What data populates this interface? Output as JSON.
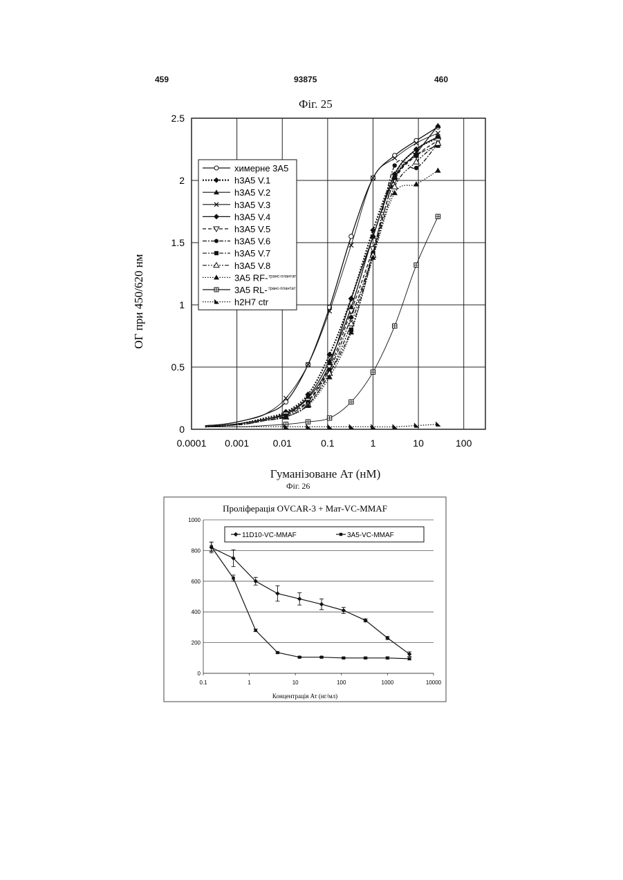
{
  "page": {
    "left_number": "459",
    "center_number": "93875",
    "right_number": "460"
  },
  "chart_data": [
    {
      "type": "line",
      "title": "Фіг. 25",
      "xlabel": "Гуманізоване Ат (нМ)",
      "ylabel": "ОГ при 450/620 нм",
      "xscale": "log",
      "xlim": [
        0.0001,
        300
      ],
      "ylim": [
        0,
        2.5
      ],
      "x_ticks": [
        "0.0001",
        "0.001",
        "0.01",
        "0.1",
        "1",
        "10",
        "100"
      ],
      "y_ticks": [
        "0",
        "0.5",
        "1",
        "1.5",
        "2",
        "2.5"
      ],
      "grid": true,
      "legend_position": "top-left",
      "x": [
        0.0002,
        0.0005,
        0.0014,
        0.0041,
        0.012,
        0.037,
        0.11,
        0.33,
        1.0,
        3.0,
        9.0,
        27.0
      ],
      "series": [
        {
          "name": "химерне 3А5",
          "marker": "open-circle",
          "dash": "solid",
          "values": [
            0.03,
            0.04,
            0.07,
            0.12,
            0.22,
            0.52,
            0.98,
            1.55,
            2.02,
            2.2,
            2.32,
            2.43
          ]
        },
        {
          "name": "h3A5 V.1",
          "marker": "diamond",
          "dash": "dotted-thick",
          "values": [
            0.02,
            0.03,
            0.05,
            0.09,
            0.14,
            0.28,
            0.6,
            1.05,
            1.6,
            2.05,
            2.25,
            2.34
          ]
        },
        {
          "name": "h3A5 V.2",
          "marker": "triangle",
          "dash": "solid",
          "values": [
            0.02,
            0.03,
            0.05,
            0.08,
            0.13,
            0.26,
            0.55,
            0.98,
            1.55,
            2.02,
            2.22,
            2.44
          ]
        },
        {
          "name": "h3A5 V.3",
          "marker": "x",
          "dash": "solid-thin",
          "values": [
            0.03,
            0.04,
            0.07,
            0.12,
            0.25,
            0.52,
            0.95,
            1.48,
            2.02,
            2.18,
            2.3,
            2.38
          ]
        },
        {
          "name": "h3A5 V.4",
          "marker": "diamond",
          "dash": "solid",
          "values": [
            0.02,
            0.03,
            0.05,
            0.08,
            0.12,
            0.25,
            0.52,
            1.05,
            1.55,
            2.05,
            2.25,
            2.35
          ]
        },
        {
          "name": "h3A5 V.5",
          "marker": "open-triangle-down",
          "dash": "dashed",
          "values": [
            0.02,
            0.03,
            0.05,
            0.08,
            0.12,
            0.23,
            0.5,
            0.95,
            1.45,
            2.0,
            2.2,
            2.32
          ]
        },
        {
          "name": "h3A5 V.6",
          "marker": "circle",
          "dash": "dash-dot",
          "values": [
            0.02,
            0.03,
            0.04,
            0.07,
            0.11,
            0.22,
            0.48,
            0.9,
            1.42,
            2.12,
            2.1,
            2.3
          ]
        },
        {
          "name": "h3A5 V.7",
          "marker": "square",
          "dash": "dash-dot",
          "values": [
            0.02,
            0.03,
            0.04,
            0.07,
            0.1,
            0.2,
            0.45,
            0.8,
            1.4,
            2.02,
            2.2,
            2.28
          ]
        },
        {
          "name": "h3A5 V.8",
          "marker": "open-triangle",
          "dash": "dash-dot-dot",
          "values": [
            0.02,
            0.03,
            0.04,
            0.07,
            0.1,
            0.2,
            0.45,
            0.85,
            1.4,
            1.95,
            2.15,
            2.3
          ]
        },
        {
          "name": "3А5 RF-",
          "note": "транс-плантат",
          "marker": "triangle",
          "dash": "dotted",
          "values": [
            0.02,
            0.03,
            0.04,
            0.07,
            0.1,
            0.19,
            0.42,
            0.78,
            1.38,
            1.9,
            1.97,
            2.08
          ]
        },
        {
          "name": "3А5 RL-",
          "note": "транс-плантат",
          "marker": "open-square-cross",
          "dash": "solid-thin",
          "values": [
            0.02,
            0.02,
            0.02,
            0.03,
            0.04,
            0.06,
            0.09,
            0.22,
            0.46,
            0.83,
            1.32,
            1.71
          ]
        },
        {
          "name": "h2H7 ctr",
          "marker": "right-triangle",
          "dash": "dotted",
          "values": [
            0.02,
            0.02,
            0.02,
            0.02,
            0.02,
            0.02,
            0.02,
            0.02,
            0.02,
            0.02,
            0.03,
            0.04
          ]
        }
      ]
    },
    {
      "type": "line",
      "figure_label": "Фіг. 26",
      "title": "Проліферація OVCAR-3 + Мат-VC-MMAF",
      "xlabel": "Концентрація Ат (нг/мл)",
      "ylabel": "",
      "xscale": "log",
      "xlim": [
        0.1,
        10000
      ],
      "ylim": [
        0,
        1000
      ],
      "x_ticks": [
        "0.1",
        "1",
        "10",
        "100",
        "1000",
        "10000"
      ],
      "y_ticks": [
        "0",
        "200",
        "400",
        "600",
        "800",
        "1000"
      ],
      "grid": true,
      "legend_position": "top",
      "x": [
        0.15,
        0.45,
        1.37,
        4.1,
        12.3,
        37,
        111,
        333,
        1000,
        3000
      ],
      "series": [
        {
          "name": "11D10-VC-MMAF",
          "marker": "diamond",
          "values": [
            820,
            750,
            600,
            520,
            485,
            450,
            410,
            345,
            230,
            125
          ],
          "errors": [
            35,
            55,
            25,
            50,
            40,
            35,
            20,
            10,
            10,
            15
          ]
        },
        {
          "name": "3A5-VC-MMAF",
          "marker": "square",
          "values": [
            825,
            620,
            280,
            135,
            105,
            105,
            100,
            100,
            100,
            95
          ],
          "errors": [
            30,
            20,
            8,
            5,
            5,
            5,
            5,
            5,
            8,
            8
          ]
        }
      ]
    }
  ]
}
